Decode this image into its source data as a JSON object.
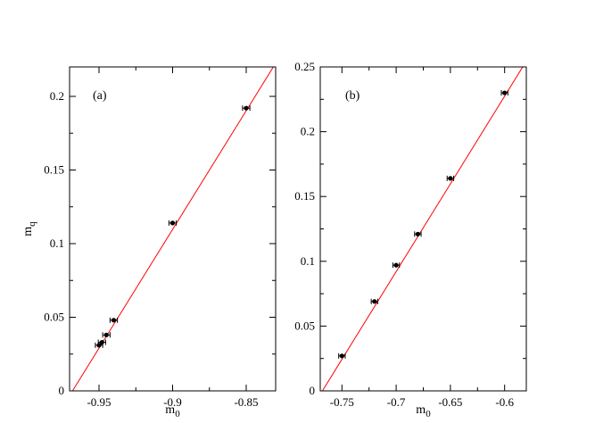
{
  "chart_data": [
    {
      "type": "scatter",
      "panel_label": "(a)",
      "xlabel": "m",
      "xlabel_sub": "0",
      "ylabel": "m",
      "ylabel_sub": "q",
      "xlim": [
        -0.97,
        -0.83
      ],
      "ylim": [
        0,
        0.22
      ],
      "xticks": [
        -0.95,
        -0.9,
        -0.85
      ],
      "xtick_labels": [
        "-0.95",
        "-0.9",
        "-0.85"
      ],
      "yticks": [
        0,
        0.05,
        0.1,
        0.15,
        0.2
      ],
      "ytick_labels": [
        "0",
        "0.05",
        "0.1",
        "0.15",
        "0.2"
      ],
      "points": [
        {
          "x": -0.95,
          "y": 0.031,
          "xerr": 0.0025
        },
        {
          "x": -0.948,
          "y": 0.033,
          "xerr": 0.0025
        },
        {
          "x": -0.945,
          "y": 0.038,
          "xerr": 0.0025
        },
        {
          "x": -0.94,
          "y": 0.048,
          "xerr": 0.0025
        },
        {
          "x": -0.9,
          "y": 0.114,
          "xerr": 0.0025
        },
        {
          "x": -0.85,
          "y": 0.192,
          "xerr": 0.0025
        }
      ],
      "fit_line": {
        "x": [
          -0.968,
          -0.83
        ],
        "y": [
          0.0,
          0.2225
        ]
      },
      "marker_color": "#000000",
      "fit_color": "#ff0000"
    },
    {
      "type": "scatter",
      "panel_label": "(b)",
      "xlabel": "m",
      "xlabel_sub": "0",
      "ylabel": "",
      "xlim": [
        -0.77,
        -0.58
      ],
      "ylim": [
        0,
        0.25
      ],
      "xticks": [
        -0.75,
        -0.7,
        -0.65,
        -0.6
      ],
      "xtick_labels": [
        "-0.75",
        "-0.7",
        "-0.65",
        "-0.6"
      ],
      "yticks": [
        0,
        0.05,
        0.1,
        0.15,
        0.2,
        0.25
      ],
      "ytick_labels": [
        "0",
        "0.05",
        "0.1",
        "0.15",
        "0.2",
        "0.25"
      ],
      "points": [
        {
          "x": -0.75,
          "y": 0.027,
          "xerr": 0.003
        },
        {
          "x": -0.72,
          "y": 0.069,
          "xerr": 0.003
        },
        {
          "x": -0.7,
          "y": 0.097,
          "xerr": 0.003
        },
        {
          "x": -0.68,
          "y": 0.121,
          "xerr": 0.003
        },
        {
          "x": -0.65,
          "y": 0.164,
          "xerr": 0.003
        },
        {
          "x": -0.6,
          "y": 0.23,
          "xerr": 0.003
        }
      ],
      "fit_line": {
        "x": [
          -0.768,
          -0.58
        ],
        "y": [
          0.0,
          0.2545
        ]
      },
      "marker_color": "#000000",
      "fit_color": "#ff0000"
    }
  ]
}
